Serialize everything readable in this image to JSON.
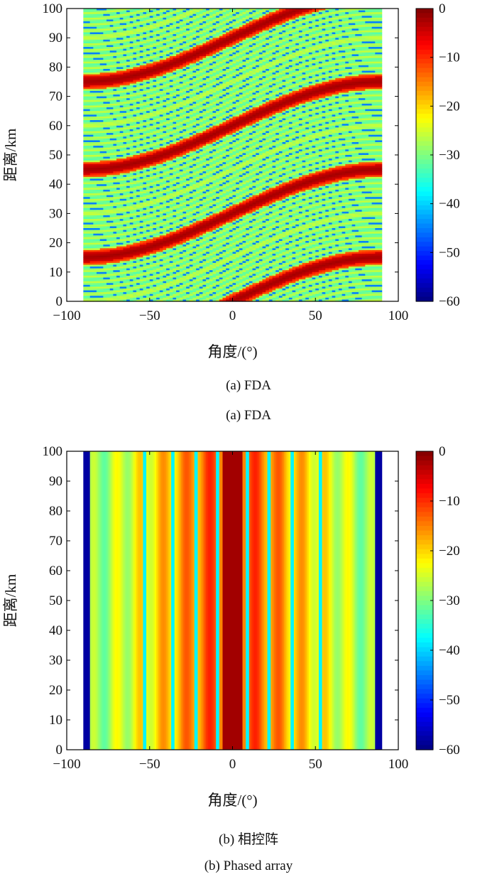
{
  "colors": {
    "colormap": "jet",
    "axis": "#000000",
    "background": "#ffffff"
  },
  "captions": {
    "a_cn": "(a) FDA",
    "a_en": "(a) FDA",
    "b_cn": "(b) 相控阵",
    "b_en": "(b) Phased array"
  },
  "chart_data": [
    {
      "type": "heatmap",
      "id": "fda",
      "xlabel": "角度/(°)",
      "ylabel": "距离/km",
      "xlim": [
        -100,
        100
      ],
      "ylim": [
        0,
        100
      ],
      "xticks": [
        "−100",
        "−50",
        "0",
        "50",
        "100"
      ],
      "xtick_values": [
        -100,
        -50,
        0,
        50,
        100
      ],
      "yticks": [
        "0",
        "10",
        "20",
        "30",
        "40",
        "50",
        "60",
        "70",
        "80",
        "90",
        "100"
      ],
      "ytick_values": [
        0,
        10,
        20,
        30,
        40,
        50,
        60,
        70,
        80,
        90,
        100
      ],
      "data_x_range": [
        -90,
        90
      ],
      "data_y_range": [
        0,
        100
      ],
      "colorbar": {
        "range": [
          -60,
          0
        ],
        "ticks": [
          "0",
          "−10",
          "−20",
          "−30",
          "−40",
          "−50",
          "−60"
        ],
        "tick_values": [
          0,
          -10,
          -20,
          -30,
          -40,
          -50,
          -60
        ]
      },
      "pattern": "S-shaped main-lobe stripes; peak range shifts with angle, repeating every 30 km",
      "main_lobe_range_at_angle_km": {
        "angles": [
          -90,
          -45,
          0,
          45,
          90
        ],
        "ranges": [
          15,
          20.5,
          30,
          39.5,
          45
        ]
      },
      "range_period_km": 30,
      "sidelobe_level_db": -30
    },
    {
      "type": "heatmap",
      "id": "phased-array",
      "xlabel": "角度/(°)",
      "ylabel": "距离/km",
      "xlim": [
        -100,
        100
      ],
      "ylim": [
        0,
        100
      ],
      "xticks": [
        "−100",
        "−50",
        "0",
        "50",
        "100"
      ],
      "xtick_values": [
        -100,
        -50,
        0,
        50,
        100
      ],
      "yticks": [
        "0",
        "10",
        "20",
        "30",
        "40",
        "50",
        "60",
        "70",
        "80",
        "90",
        "100"
      ],
      "ytick_values": [
        0,
        10,
        20,
        30,
        40,
        50,
        60,
        70,
        80,
        90,
        100
      ],
      "data_x_range": [
        -90,
        90
      ],
      "data_y_range": [
        0,
        100
      ],
      "colorbar": {
        "range": [
          -60,
          0
        ],
        "ticks": [
          "0",
          "−10",
          "−20",
          "−30",
          "−40",
          "−50",
          "−60"
        ],
        "tick_values": [
          0,
          -10,
          -20,
          -30,
          -40,
          -50,
          -60
        ]
      },
      "pattern": "range-independent vertical stripes; main lobe centred at 0°",
      "main_lobe_center_deg": 0,
      "null_angles_deg": [
        -53,
        -36,
        -22,
        -9,
        9,
        22,
        36,
        53
      ],
      "edge_level_db": -60
    }
  ]
}
